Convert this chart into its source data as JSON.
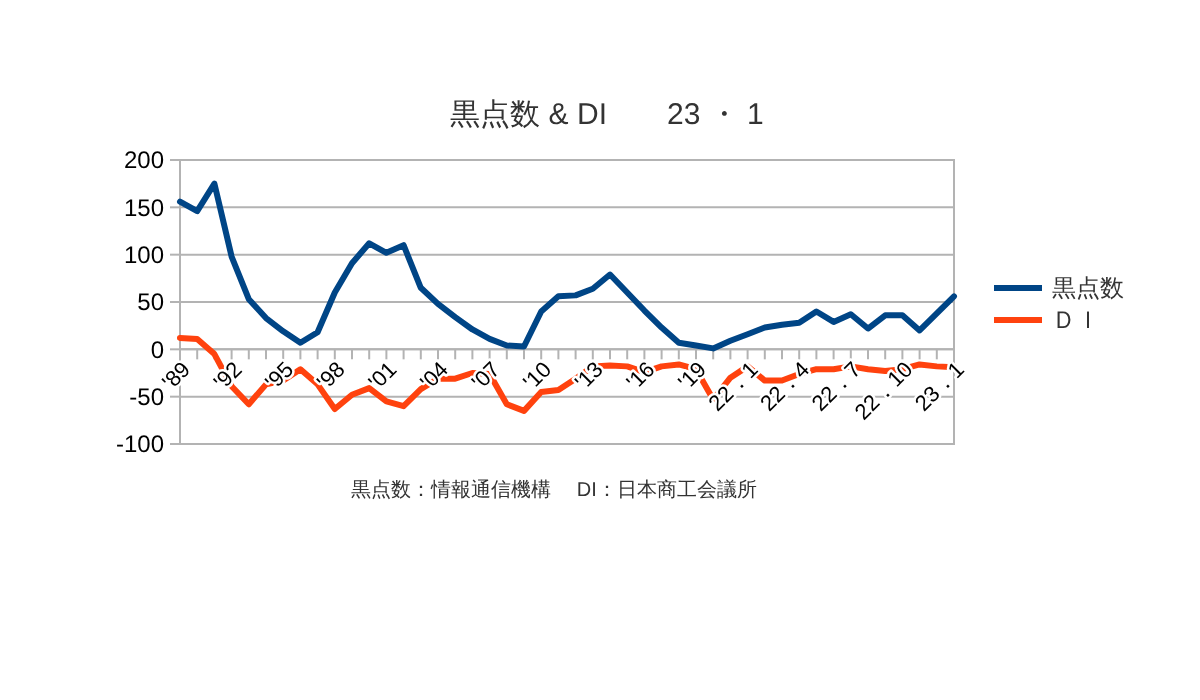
{
  "chart_data": {
    "type": "line",
    "title": "黒点数 & DI　　23 ・ 1",
    "categories": [
      "'89",
      null,
      null,
      "'92",
      null,
      null,
      "'95",
      null,
      null,
      "'98",
      null,
      null,
      "'01",
      null,
      null,
      "'04",
      null,
      null,
      "'07",
      null,
      null,
      "'10",
      null,
      null,
      "'13",
      null,
      null,
      "'16",
      null,
      null,
      "'19",
      null,
      null,
      "22．1",
      null,
      null,
      "22．4",
      null,
      null,
      "22．7",
      null,
      null,
      "22．10",
      null,
      null,
      "23．1"
    ],
    "series": [
      {
        "name": "黒点数",
        "color": "#004586",
        "values": [
          156,
          146,
          175,
          98,
          53,
          33,
          19,
          7,
          18,
          60,
          91,
          112,
          102,
          110,
          65,
          48,
          34,
          21,
          11,
          4,
          3,
          40,
          56,
          57,
          64,
          79,
          60,
          41,
          23,
          7,
          4,
          1,
          9,
          16,
          23,
          26,
          28,
          40,
          29,
          37,
          22,
          36,
          36,
          20,
          38,
          56
        ]
      },
      {
        "name": "ＤＩ",
        "color": "#ff420e",
        "values": [
          12,
          11,
          -5,
          -39,
          -58,
          -37,
          -33,
          -21,
          -37,
          -63,
          -48,
          -41,
          -55,
          -60,
          -42,
          -31,
          -31,
          -25,
          -26,
          -58,
          -65,
          -45,
          -43,
          -31,
          -18,
          -17,
          -18,
          -24,
          -18,
          -16,
          -21,
          -53,
          -30,
          -18,
          -33,
          -33,
          -26,
          -21,
          -21,
          -18,
          -21,
          -23,
          -21,
          -16,
          -18,
          -19
        ]
      }
    ],
    "ylim": [
      -100,
      200
    ],
    "yticks": [
      -100,
      -50,
      0,
      50,
      100,
      150,
      200
    ],
    "grid": "y",
    "legend": "right",
    "marker": "none",
    "line_style": "solid",
    "annotations": [
      "黒点数：情報通信機構　 DI：日本商工会議所"
    ]
  }
}
